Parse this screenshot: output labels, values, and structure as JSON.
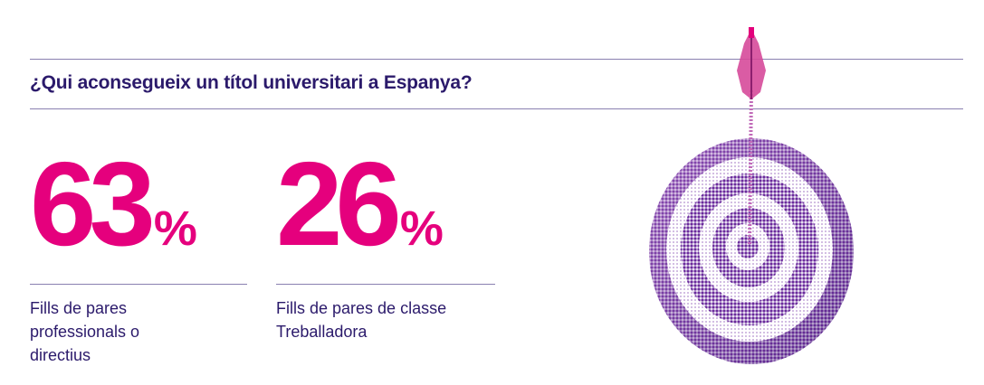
{
  "header": {
    "title": "¿Qui aconsegueix un títol universitari a Espanya?"
  },
  "stats": [
    {
      "value": "63",
      "unit": "%",
      "label": "Fills de pares professionals o directius"
    },
    {
      "value": "26",
      "unit": "%",
      "label": "Fills de pares de classe Treballadora"
    }
  ]
}
